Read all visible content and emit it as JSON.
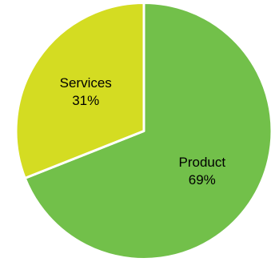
{
  "chart_data": {
    "type": "pie",
    "categories": [
      "Product",
      "Services"
    ],
    "values": [
      69,
      31
    ],
    "value_labels": [
      "69%",
      "31%"
    ],
    "colors": [
      "#72c04a",
      "#d4dc22"
    ],
    "slice_border_color": "#ffffff",
    "start": "top, clockwise",
    "legend": "none"
  }
}
